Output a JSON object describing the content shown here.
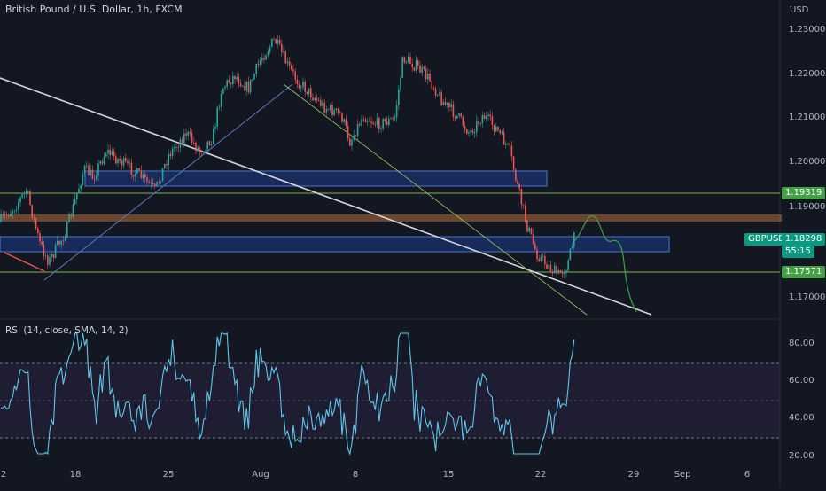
{
  "header": {
    "title": "British Pound / U.S. Dollar, 1h, FXCM"
  },
  "price_axis": {
    "currency": "USD",
    "ticks": [
      "1.23000",
      "1.22000",
      "1.21000",
      "1.20000",
      "1.19000",
      "1.17000"
    ]
  },
  "price_labels": {
    "upper_line": "1.19319",
    "symbol": "GBPUSD",
    "current": "1.18298",
    "countdown": "55:15",
    "lower_line": "1.17571"
  },
  "rsi": {
    "title": "RSI (14, close, SMA, 14, 2)",
    "ticks": [
      "80.00",
      "60.00",
      "40.00",
      "20.00"
    ]
  },
  "time_axis": {
    "ticks": [
      "2",
      "18",
      "25",
      "Aug",
      "8",
      "15",
      "22",
      "29",
      "Sep",
      "6"
    ]
  },
  "colors": {
    "background": "#131722",
    "up_candle": "#26a69a",
    "down_candle": "#ef5350",
    "rsi_line": "#5fc6e8",
    "zone": "#2962ff",
    "resistance": "#b26b3a",
    "horizontal_line": "#7cb342"
  }
}
